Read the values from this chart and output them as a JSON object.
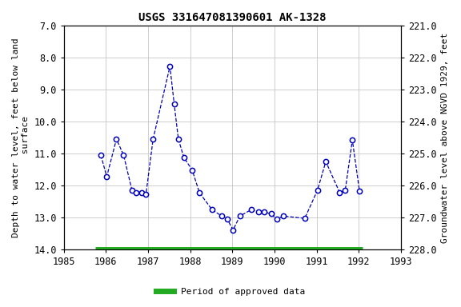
{
  "title": "USGS 331647081390601 AK-1328",
  "ylabel_left": "Depth to water level, feet below land\n surface",
  "ylabel_right": "Groundwater level above NGVD 1929, feet",
  "ylim_left": [
    7.0,
    14.0
  ],
  "ylim_right": [
    221.0,
    228.0
  ],
  "xlim": [
    1985,
    1993
  ],
  "xticks": [
    1985,
    1986,
    1987,
    1988,
    1989,
    1990,
    1991,
    1992,
    1993
  ],
  "yticks_left": [
    7.0,
    8.0,
    9.0,
    10.0,
    11.0,
    12.0,
    13.0,
    14.0
  ],
  "yticks_right": [
    221.0,
    222.0,
    223.0,
    224.0,
    225.0,
    226.0,
    227.0,
    228.0
  ],
  "data_x": [
    1985.88,
    1986.02,
    1986.25,
    1986.42,
    1986.62,
    1986.72,
    1986.85,
    1986.95,
    1987.12,
    1987.52,
    1987.62,
    1987.72,
    1987.85,
    1988.05,
    1988.22,
    1988.52,
    1988.75,
    1988.88,
    1989.02,
    1989.18,
    1989.45,
    1989.62,
    1989.75,
    1989.92,
    1990.05,
    1990.22,
    1990.72,
    1991.02,
    1991.22,
    1991.55,
    1991.68,
    1991.85,
    1992.02
  ],
  "data_y": [
    11.05,
    11.72,
    10.55,
    11.05,
    12.15,
    12.22,
    12.22,
    12.28,
    10.55,
    8.28,
    9.45,
    10.55,
    11.12,
    11.52,
    12.22,
    12.75,
    12.95,
    13.05,
    13.38,
    12.95,
    12.75,
    12.82,
    12.82,
    12.88,
    13.05,
    12.95,
    13.02,
    12.15,
    11.25,
    12.22,
    12.15,
    10.58,
    12.18
  ],
  "line_color": "#0000bb",
  "marker_facecolor": "#ffffff",
  "marker_edgecolor": "#0000bb",
  "legend_color": "#22aa22",
  "legend_label": "Period of approved data",
  "bar_y": 14.0,
  "bar_x_start": 1985.75,
  "bar_x_end": 1992.1,
  "background_color": "#ffffff",
  "grid_color": "#bbbbbb",
  "title_fontsize": 10,
  "label_fontsize": 8,
  "tick_fontsize": 8.5
}
